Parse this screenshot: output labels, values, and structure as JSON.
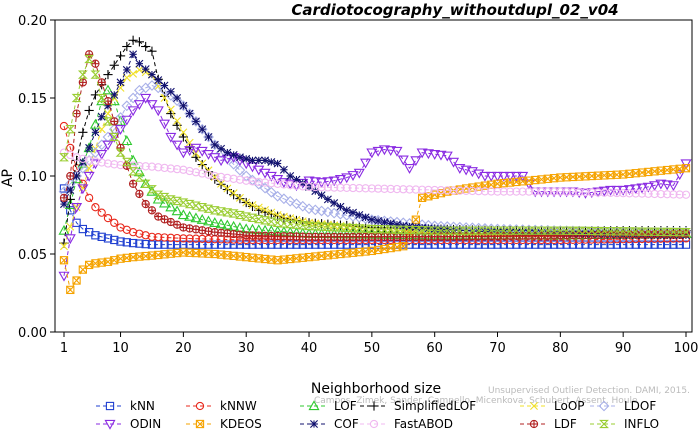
{
  "chart_data": {
    "type": "line",
    "title": "Cardiotocography_withoutdupl_02_v04",
    "xlabel": "Neighborhood size",
    "ylabel": "AP",
    "xlim": [
      1,
      100
    ],
    "ylim": [
      0,
      0.2
    ],
    "xticks": [
      1,
      10,
      20,
      30,
      40,
      50,
      60,
      70,
      80,
      90,
      100
    ],
    "yticks": [
      0.0,
      0.05,
      0.1,
      0.15,
      0.2
    ],
    "ytick_labels": [
      "0.00",
      "0.05",
      "0.10",
      "0.15",
      "0.20"
    ],
    "grid": false,
    "legend_position": "bottom",
    "watermark": [
      "Campos, Zimek, Sander, Campello, Micenkova, Schubert, Assent, Houle",
      "Unsupervised Outlier Detection. DAMI, 2015."
    ],
    "series": [
      {
        "name": "kNN",
        "color": "#1f3fd0",
        "marker": "square",
        "points": [
          [
            1,
            0.092
          ],
          [
            2,
            0.078
          ],
          [
            3,
            0.07
          ],
          [
            4,
            0.066
          ],
          [
            5,
            0.064
          ],
          [
            6,
            0.062
          ],
          [
            8,
            0.06
          ],
          [
            10,
            0.058
          ],
          [
            12,
            0.057
          ],
          [
            15,
            0.056
          ],
          [
            20,
            0.056
          ],
          [
            30,
            0.056
          ],
          [
            40,
            0.056
          ],
          [
            60,
            0.056
          ],
          [
            80,
            0.056
          ],
          [
            100,
            0.056
          ]
        ]
      },
      {
        "name": "kNNW",
        "color": "#e8281c",
        "marker": "circle",
        "points": [
          [
            1,
            0.132
          ],
          [
            2,
            0.118
          ],
          [
            3,
            0.105
          ],
          [
            4,
            0.095
          ],
          [
            5,
            0.086
          ],
          [
            6,
            0.08
          ],
          [
            8,
            0.073
          ],
          [
            10,
            0.067
          ],
          [
            12,
            0.064
          ],
          [
            15,
            0.061
          ],
          [
            20,
            0.06
          ],
          [
            30,
            0.059
          ],
          [
            40,
            0.059
          ],
          [
            60,
            0.059
          ],
          [
            80,
            0.059
          ],
          [
            100,
            0.06
          ]
        ]
      },
      {
        "name": "LOF",
        "color": "#2fc82f",
        "marker": "triangle-up",
        "points": [
          [
            1,
            0.065
          ],
          [
            3,
            0.098
          ],
          [
            5,
            0.118
          ],
          [
            7,
            0.148
          ],
          [
            8,
            0.155
          ],
          [
            9,
            0.148
          ],
          [
            10,
            0.135
          ],
          [
            12,
            0.11
          ],
          [
            14,
            0.095
          ],
          [
            16,
            0.085
          ],
          [
            20,
            0.075
          ],
          [
            25,
            0.07
          ],
          [
            30,
            0.066
          ],
          [
            40,
            0.063
          ],
          [
            60,
            0.062
          ],
          [
            80,
            0.062
          ],
          [
            100,
            0.063
          ]
        ]
      },
      {
        "name": "SimplifiedLOF",
        "color": "#000000",
        "marker": "plus",
        "points": [
          [
            1,
            0.057
          ],
          [
            2,
            0.085
          ],
          [
            3,
            0.11
          ],
          [
            4,
            0.128
          ],
          [
            5,
            0.142
          ],
          [
            6,
            0.152
          ],
          [
            8,
            0.165
          ],
          [
            10,
            0.177
          ],
          [
            11,
            0.183
          ],
          [
            12,
            0.187
          ],
          [
            13,
            0.186
          ],
          [
            14,
            0.183
          ],
          [
            15,
            0.18
          ],
          [
            16,
            0.162
          ],
          [
            18,
            0.14
          ],
          [
            20,
            0.125
          ],
          [
            22,
            0.112
          ],
          [
            25,
            0.098
          ],
          [
            28,
            0.088
          ],
          [
            32,
            0.078
          ],
          [
            36,
            0.073
          ],
          [
            40,
            0.07
          ],
          [
            50,
            0.067
          ],
          [
            60,
            0.066
          ],
          [
            70,
            0.065
          ],
          [
            80,
            0.065
          ],
          [
            90,
            0.065
          ],
          [
            100,
            0.065
          ]
        ]
      },
      {
        "name": "LoOP",
        "color": "#f0e02a",
        "marker": "x",
        "points": [
          [
            1,
            0.055
          ],
          [
            3,
            0.08
          ],
          [
            5,
            0.105
          ],
          [
            7,
            0.13
          ],
          [
            9,
            0.15
          ],
          [
            11,
            0.163
          ],
          [
            13,
            0.168
          ],
          [
            15,
            0.165
          ],
          [
            17,
            0.15
          ],
          [
            20,
            0.128
          ],
          [
            23,
            0.108
          ],
          [
            26,
            0.095
          ],
          [
            30,
            0.083
          ],
          [
            35,
            0.075
          ],
          [
            40,
            0.07
          ],
          [
            50,
            0.066
          ],
          [
            60,
            0.064
          ],
          [
            70,
            0.063
          ],
          [
            80,
            0.063
          ],
          [
            90,
            0.063
          ],
          [
            100,
            0.063
          ]
        ]
      },
      {
        "name": "LDOF",
        "color": "#a8b0e8",
        "marker": "diamond",
        "points": [
          [
            1,
            0.09
          ],
          [
            3,
            0.1
          ],
          [
            5,
            0.11
          ],
          [
            7,
            0.12
          ],
          [
            9,
            0.13
          ],
          [
            11,
            0.145
          ],
          [
            13,
            0.155
          ],
          [
            15,
            0.158
          ],
          [
            17,
            0.155
          ],
          [
            20,
            0.145
          ],
          [
            23,
            0.13
          ],
          [
            26,
            0.115
          ],
          [
            30,
            0.1
          ],
          [
            35,
            0.087
          ],
          [
            40,
            0.079
          ],
          [
            50,
            0.072
          ],
          [
            60,
            0.068
          ],
          [
            70,
            0.066
          ],
          [
            80,
            0.065
          ],
          [
            90,
            0.064
          ],
          [
            100,
            0.064
          ]
        ]
      },
      {
        "name": "ODIN",
        "color": "#8a2be2",
        "marker": "triangle-down",
        "points": [
          [
            1,
            0.036
          ],
          [
            2,
            0.06
          ],
          [
            3,
            0.08
          ],
          [
            4,
            0.092
          ],
          [
            5,
            0.1
          ],
          [
            6,
            0.108
          ],
          [
            8,
            0.12
          ],
          [
            10,
            0.13
          ],
          [
            12,
            0.142
          ],
          [
            14,
            0.15
          ],
          [
            16,
            0.142
          ],
          [
            18,
            0.125
          ],
          [
            20,
            0.115
          ],
          [
            22,
            0.118
          ],
          [
            24,
            0.114
          ],
          [
            26,
            0.11
          ],
          [
            28,
            0.112
          ],
          [
            30,
            0.108
          ],
          [
            32,
            0.104
          ],
          [
            34,
            0.1
          ],
          [
            36,
            0.096
          ],
          [
            38,
            0.094
          ],
          [
            40,
            0.097
          ],
          [
            42,
            0.096
          ],
          [
            44,
            0.097
          ],
          [
            46,
            0.099
          ],
          [
            48,
            0.102
          ],
          [
            50,
            0.115
          ],
          [
            52,
            0.117
          ],
          [
            54,
            0.116
          ],
          [
            56,
            0.105
          ],
          [
            58,
            0.115
          ],
          [
            60,
            0.114
          ],
          [
            62,
            0.113
          ],
          [
            64,
            0.105
          ],
          [
            66,
            0.103
          ],
          [
            68,
            0.1
          ],
          [
            70,
            0.1
          ],
          [
            72,
            0.1
          ],
          [
            74,
            0.1
          ],
          [
            76,
            0.09
          ],
          [
            78,
            0.09
          ],
          [
            80,
            0.09
          ],
          [
            82,
            0.09
          ],
          [
            84,
            0.089
          ],
          [
            86,
            0.09
          ],
          [
            88,
            0.091
          ],
          [
            90,
            0.091
          ],
          [
            92,
            0.092
          ],
          [
            94,
            0.093
          ],
          [
            96,
            0.095
          ],
          [
            98,
            0.094
          ],
          [
            100,
            0.108
          ]
        ]
      },
      {
        "name": "KDEOS",
        "color": "#f5a300",
        "marker": "square-x",
        "points": [
          [
            1,
            0.046
          ],
          [
            2,
            0.027
          ],
          [
            3,
            0.033
          ],
          [
            4,
            0.04
          ],
          [
            5,
            0.043
          ],
          [
            6,
            0.044
          ],
          [
            8,
            0.045
          ],
          [
            10,
            0.047
          ],
          [
            12,
            0.048
          ],
          [
            15,
            0.049
          ],
          [
            20,
            0.051
          ],
          [
            25,
            0.05
          ],
          [
            30,
            0.048
          ],
          [
            35,
            0.046
          ],
          [
            40,
            0.048
          ],
          [
            45,
            0.05
          ],
          [
            50,
            0.052
          ],
          [
            55,
            0.055
          ],
          [
            57,
            0.072
          ],
          [
            58,
            0.086
          ],
          [
            60,
            0.088
          ],
          [
            62,
            0.09
          ],
          [
            65,
            0.092
          ],
          [
            70,
            0.095
          ],
          [
            75,
            0.097
          ],
          [
            80,
            0.099
          ],
          [
            85,
            0.1
          ],
          [
            90,
            0.101
          ],
          [
            95,
            0.103
          ],
          [
            100,
            0.105
          ]
        ]
      },
      {
        "name": "COF",
        "color": "#11116e",
        "marker": "asterisk",
        "points": [
          [
            1,
            0.082
          ],
          [
            3,
            0.1
          ],
          [
            5,
            0.118
          ],
          [
            7,
            0.138
          ],
          [
            9,
            0.152
          ],
          [
            11,
            0.168
          ],
          [
            12,
            0.178
          ],
          [
            13,
            0.172
          ],
          [
            15,
            0.165
          ],
          [
            17,
            0.158
          ],
          [
            19,
            0.15
          ],
          [
            21,
            0.14
          ],
          [
            23,
            0.13
          ],
          [
            25,
            0.12
          ],
          [
            27,
            0.115
          ],
          [
            29,
            0.112
          ],
          [
            31,
            0.11
          ],
          [
            33,
            0.11
          ],
          [
            35,
            0.108
          ],
          [
            37,
            0.1
          ],
          [
            40,
            0.093
          ],
          [
            43,
            0.085
          ],
          [
            46,
            0.078
          ],
          [
            50,
            0.072
          ],
          [
            55,
            0.068
          ],
          [
            60,
            0.066
          ],
          [
            70,
            0.064
          ],
          [
            80,
            0.063
          ],
          [
            90,
            0.062
          ],
          [
            100,
            0.062
          ]
        ]
      },
      {
        "name": "FastABOD",
        "color": "#f0b8f0",
        "marker": "circle",
        "points": [
          [
            1,
            0.115
          ],
          [
            3,
            0.112
          ],
          [
            5,
            0.11
          ],
          [
            8,
            0.108
          ],
          [
            10,
            0.107
          ],
          [
            15,
            0.106
          ],
          [
            20,
            0.104
          ],
          [
            25,
            0.1
          ],
          [
            30,
            0.097
          ],
          [
            35,
            0.095
          ],
          [
            40,
            0.093
          ],
          [
            50,
            0.092
          ],
          [
            60,
            0.091
          ],
          [
            70,
            0.09
          ],
          [
            80,
            0.09
          ],
          [
            90,
            0.089
          ],
          [
            100,
            0.088
          ]
        ]
      },
      {
        "name": "LDF",
        "color": "#b02020",
        "marker": "circle-plus",
        "points": [
          [
            1,
            0.086
          ],
          [
            2,
            0.1
          ],
          [
            3,
            0.14
          ],
          [
            4,
            0.16
          ],
          [
            5,
            0.178
          ],
          [
            6,
            0.172
          ],
          [
            7,
            0.16
          ],
          [
            8,
            0.148
          ],
          [
            9,
            0.135
          ],
          [
            10,
            0.118
          ],
          [
            12,
            0.095
          ],
          [
            14,
            0.082
          ],
          [
            16,
            0.074
          ],
          [
            20,
            0.067
          ],
          [
            25,
            0.064
          ],
          [
            30,
            0.062
          ],
          [
            40,
            0.061
          ],
          [
            60,
            0.061
          ],
          [
            80,
            0.062
          ],
          [
            100,
            0.063
          ]
        ]
      },
      {
        "name": "INFLO",
        "color": "#9acd32",
        "marker": "hourglass",
        "points": [
          [
            1,
            0.112
          ],
          [
            2,
            0.13
          ],
          [
            3,
            0.15
          ],
          [
            4,
            0.165
          ],
          [
            5,
            0.175
          ],
          [
            6,
            0.165
          ],
          [
            7,
            0.15
          ],
          [
            8,
            0.135
          ],
          [
            9,
            0.125
          ],
          [
            10,
            0.115
          ],
          [
            12,
            0.103
          ],
          [
            14,
            0.095
          ],
          [
            16,
            0.088
          ],
          [
            18,
            0.085
          ],
          [
            20,
            0.083
          ],
          [
            22,
            0.081
          ],
          [
            25,
            0.078
          ],
          [
            28,
            0.076
          ],
          [
            30,
            0.074
          ],
          [
            35,
            0.07
          ],
          [
            40,
            0.068
          ],
          [
            50,
            0.066
          ],
          [
            60,
            0.065
          ],
          [
            80,
            0.065
          ],
          [
            100,
            0.064
          ]
        ]
      }
    ]
  }
}
